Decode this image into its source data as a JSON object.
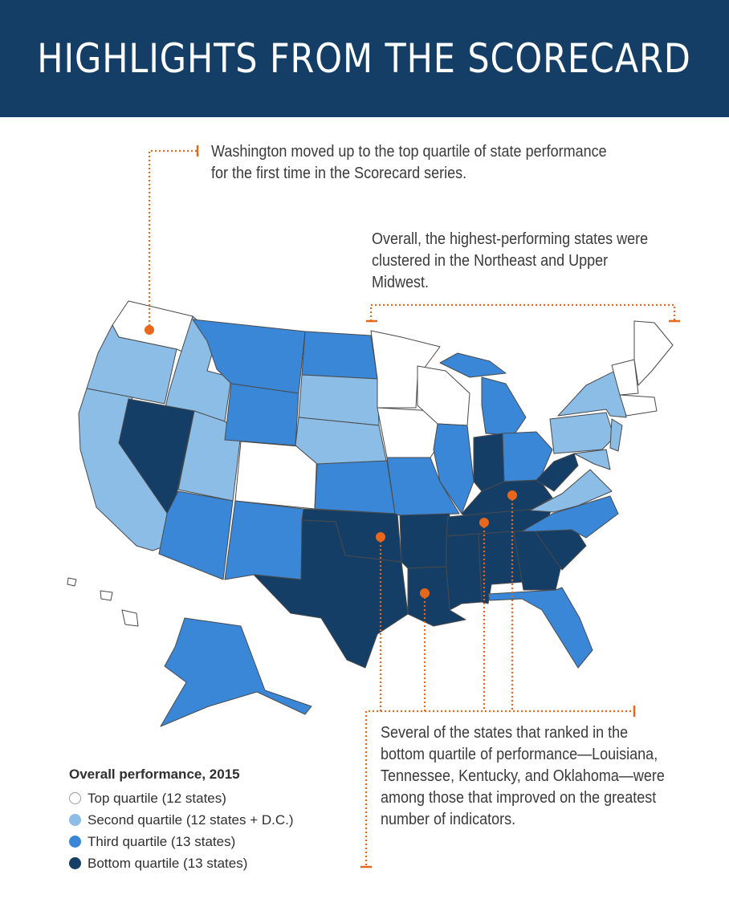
{
  "header": {
    "title": "HIGHLIGHTS FROM THE SCORECARD"
  },
  "callouts": {
    "washington": "Washington moved up to the top quartile of state performance for the first time in the Scorecard series.",
    "northeast": "Overall, the highest-performing states were clustered in the Northeast and Upper Midwest.",
    "bottom_quartile": "Several of the states that ranked in the bottom quartile of performance—Louisiana, Tennessee, Kentucky, and Oklahoma—were among those that improved on the greatest number of indicators."
  },
  "legend": {
    "title": "Overall performance, 2015",
    "items": [
      {
        "label": "Top quartile (12 states)",
        "color": "#ffffff"
      },
      {
        "label": "Second quartile (12 states + D.C.)",
        "color": "#8bbde6"
      },
      {
        "label": "Third quartile (13 states)",
        "color": "#3a87d8"
      },
      {
        "label": "Bottom quartile (13 states)",
        "color": "#153e66"
      }
    ]
  },
  "colors": {
    "header_bg": "#153e66",
    "accent": "#e8671a",
    "border": "#4a4a4a"
  }
}
